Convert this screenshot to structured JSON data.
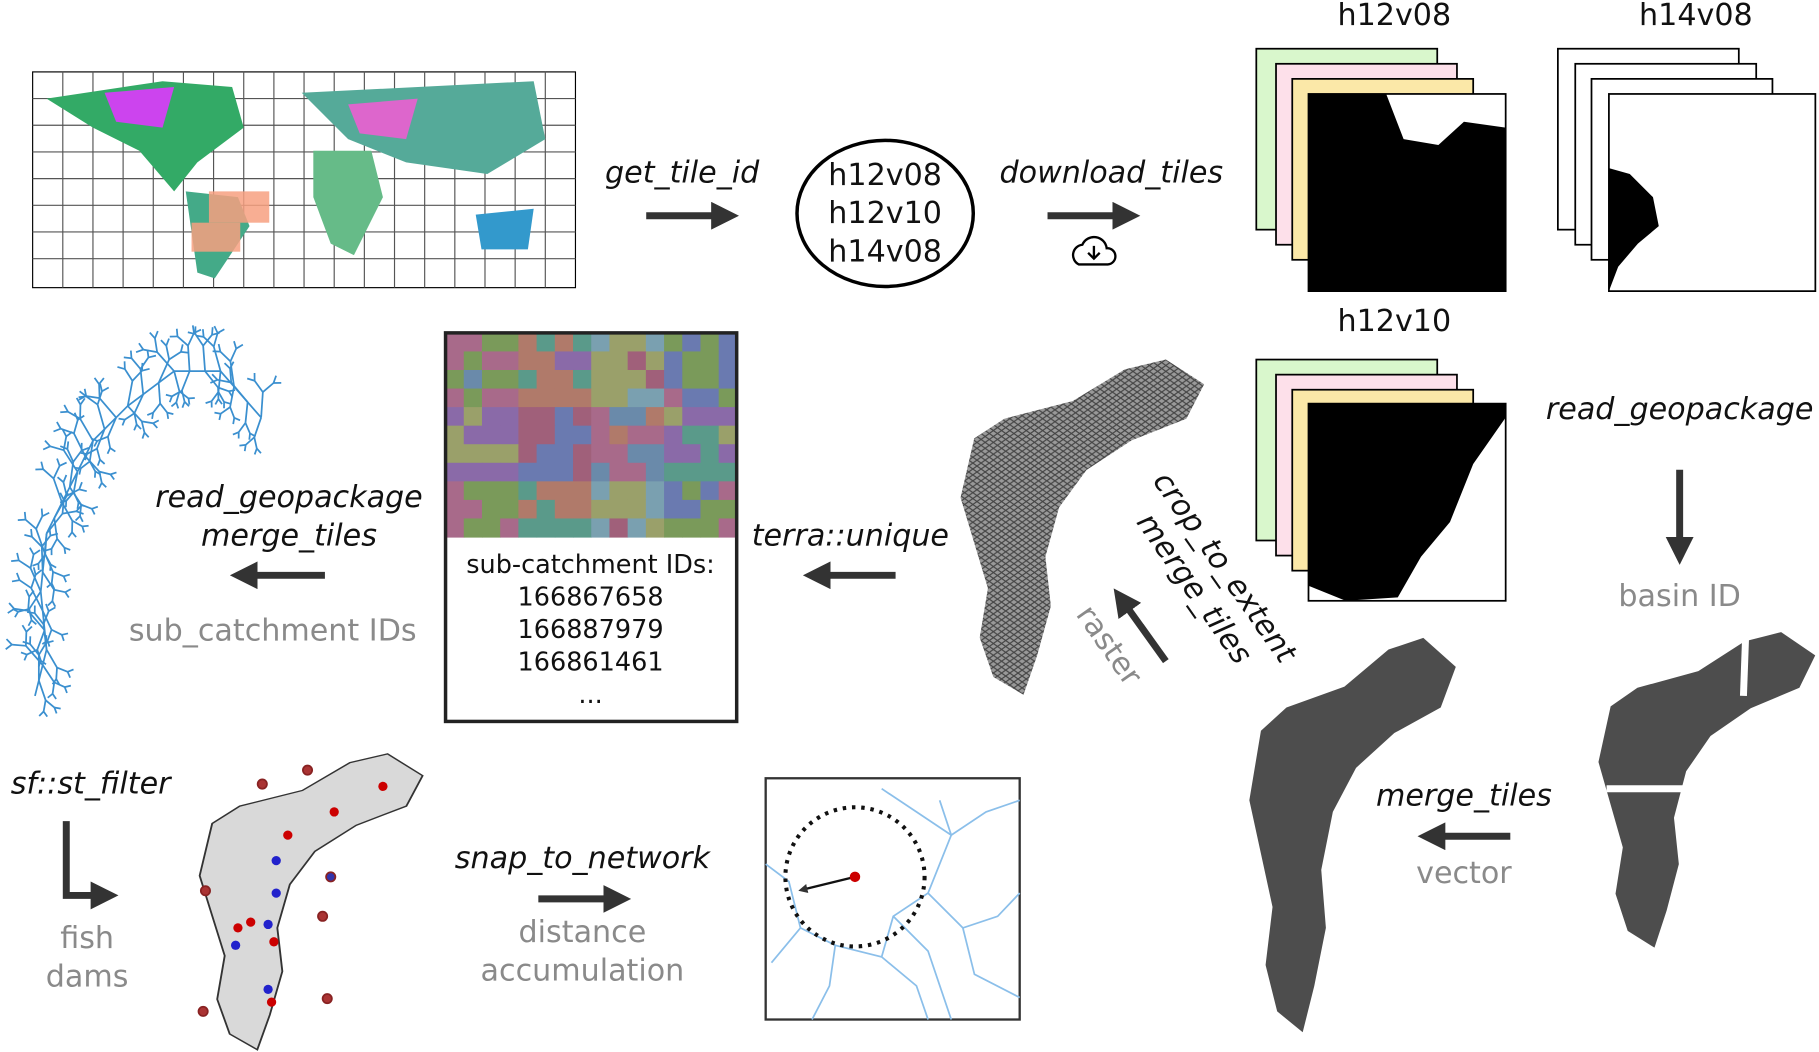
{
  "tile_ids": [
    "h12v08",
    "h12v10",
    "h14v08"
  ],
  "tiles": [
    "h12v08",
    "h14v08",
    "h12v10"
  ],
  "edges": [
    {
      "labels": [
        "get_tile_id"
      ]
    },
    {
      "labels": [
        "download_tiles"
      ]
    },
    {
      "labels": [
        "read_geopackage"
      ],
      "notes": [
        "basin ID"
      ]
    },
    {
      "labels": [
        "merge_tiles"
      ],
      "notes": [
        "vector"
      ]
    },
    {
      "labels": [
        "crop_to_extent",
        "merge_tiles"
      ],
      "notes": [
        "raster"
      ]
    },
    {
      "labels": [
        "terra::unique"
      ]
    },
    {
      "labels": [
        "read_geopackage",
        "merge_tiles"
      ],
      "notes": [
        "sub_catchment IDs"
      ]
    },
    {
      "labels": [
        "sf::st_filter"
      ],
      "notes": [
        "fish",
        "dams"
      ]
    },
    {
      "labels": [
        "snap_to_network"
      ],
      "notes": [
        "distance",
        "accumulation"
      ]
    }
  ],
  "id_box": {
    "title": "sub-catchment IDs:",
    "ids": [
      "166867658",
      "166887979",
      "166861461"
    ],
    "more": "..."
  }
}
